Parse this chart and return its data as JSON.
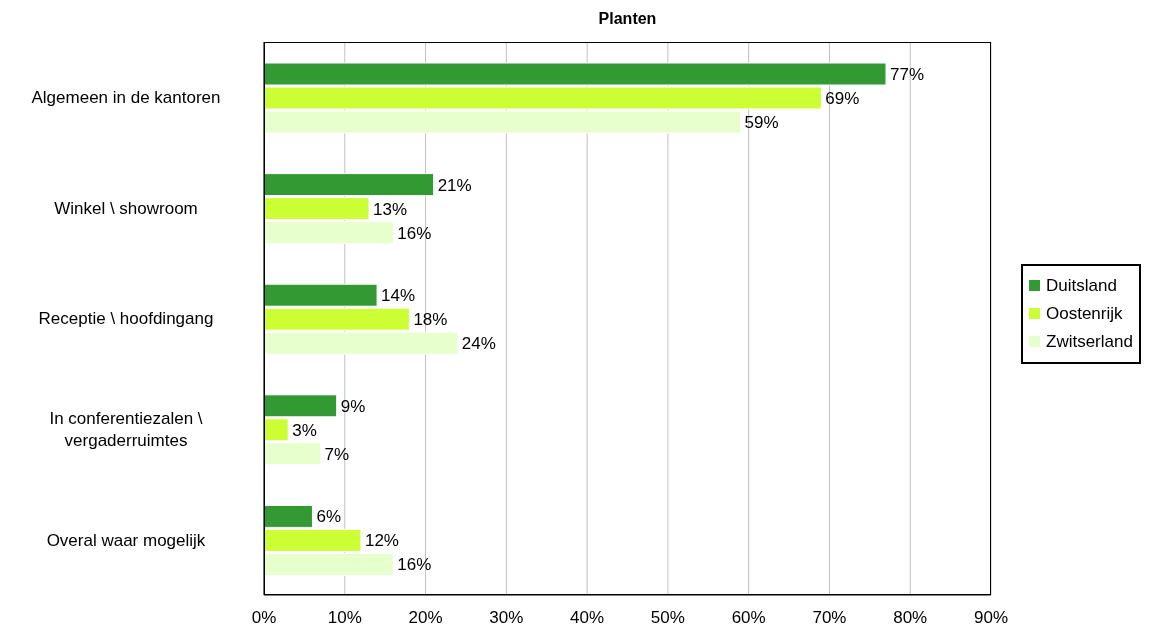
{
  "chart_data": {
    "type": "bar",
    "orientation": "horizontal",
    "title": "Planten",
    "categories": [
      "Algemeen in de kantoren",
      "Winkel \\ showroom",
      "Receptie \\ hoofdingang",
      "In conferentiezalen \\ vergaderruimtes",
      "Overal waar mogelijk"
    ],
    "series": [
      {
        "name": "Duitsland",
        "color": "#339933",
        "values": [
          77,
          21,
          14,
          9,
          6
        ],
        "value_labels": [
          "77%",
          "21%",
          "14%",
          "9%",
          "6%"
        ]
      },
      {
        "name": "Oostenrijk",
        "color": "#ccff33",
        "values": [
          69,
          13,
          18,
          3,
          12
        ],
        "value_labels": [
          "69%",
          "13%",
          "18%",
          "3%",
          "12%"
        ]
      },
      {
        "name": "Zwitserland",
        "color": "#e6ffcc",
        "values": [
          59,
          16,
          24,
          7,
          16
        ],
        "value_labels": [
          "59%",
          "16%",
          "24%",
          "7%",
          "16%"
        ]
      }
    ],
    "xlim": [
      0,
      90
    ],
    "xticks": [
      {
        "value": 0,
        "label": "0%"
      },
      {
        "value": 10,
        "label": "10%"
      },
      {
        "value": 20,
        "label": "20%"
      },
      {
        "value": 30,
        "label": "30%"
      },
      {
        "value": 40,
        "label": "40%"
      },
      {
        "value": 50,
        "label": "50%"
      },
      {
        "value": 60,
        "label": "60%"
      },
      {
        "value": 70,
        "label": "70%"
      },
      {
        "value": 80,
        "label": "80%"
      },
      {
        "value": 90,
        "label": "90%"
      }
    ],
    "grid": "x",
    "legend": "right"
  }
}
